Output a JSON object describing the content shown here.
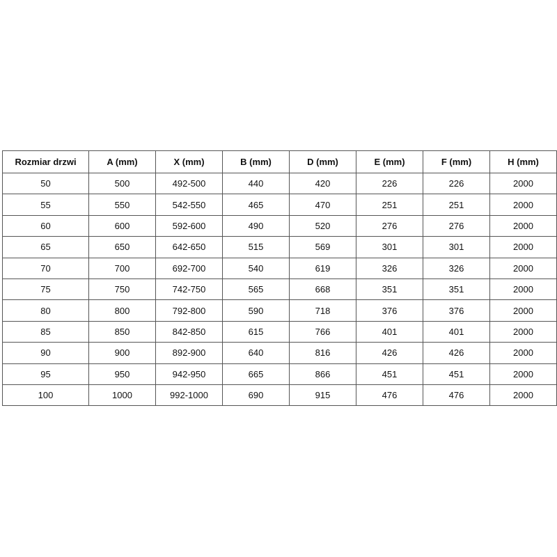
{
  "table": {
    "header": [
      "Rozmiar drzwi",
      "A (mm)",
      "X (mm)",
      "B (mm)",
      "D (mm)",
      "E (mm)",
      "F (mm)",
      "H (mm)"
    ],
    "rows": [
      [
        "50",
        "500",
        "492-500",
        "440",
        "420",
        "226",
        "226",
        "2000"
      ],
      [
        "55",
        "550",
        "542-550",
        "465",
        "470",
        "251",
        "251",
        "2000"
      ],
      [
        "60",
        "600",
        "592-600",
        "490",
        "520",
        "276",
        "276",
        "2000"
      ],
      [
        "65",
        "650",
        "642-650",
        "515",
        "569",
        "301",
        "301",
        "2000"
      ],
      [
        "70",
        "700",
        "692-700",
        "540",
        "619",
        "326",
        "326",
        "2000"
      ],
      [
        "75",
        "750",
        "742-750",
        "565",
        "668",
        "351",
        "351",
        "2000"
      ],
      [
        "80",
        "800",
        "792-800",
        "590",
        "718",
        "376",
        "376",
        "2000"
      ],
      [
        "85",
        "850",
        "842-850",
        "615",
        "766",
        "401",
        "401",
        "2000"
      ],
      [
        "90",
        "900",
        "892-900",
        "640",
        "816",
        "426",
        "426",
        "2000"
      ],
      [
        "95",
        "950",
        "942-950",
        "665",
        "866",
        "451",
        "451",
        "2000"
      ],
      [
        "100",
        "1000",
        "992-1000",
        "690",
        "915",
        "476",
        "476",
        "2000"
      ]
    ]
  }
}
